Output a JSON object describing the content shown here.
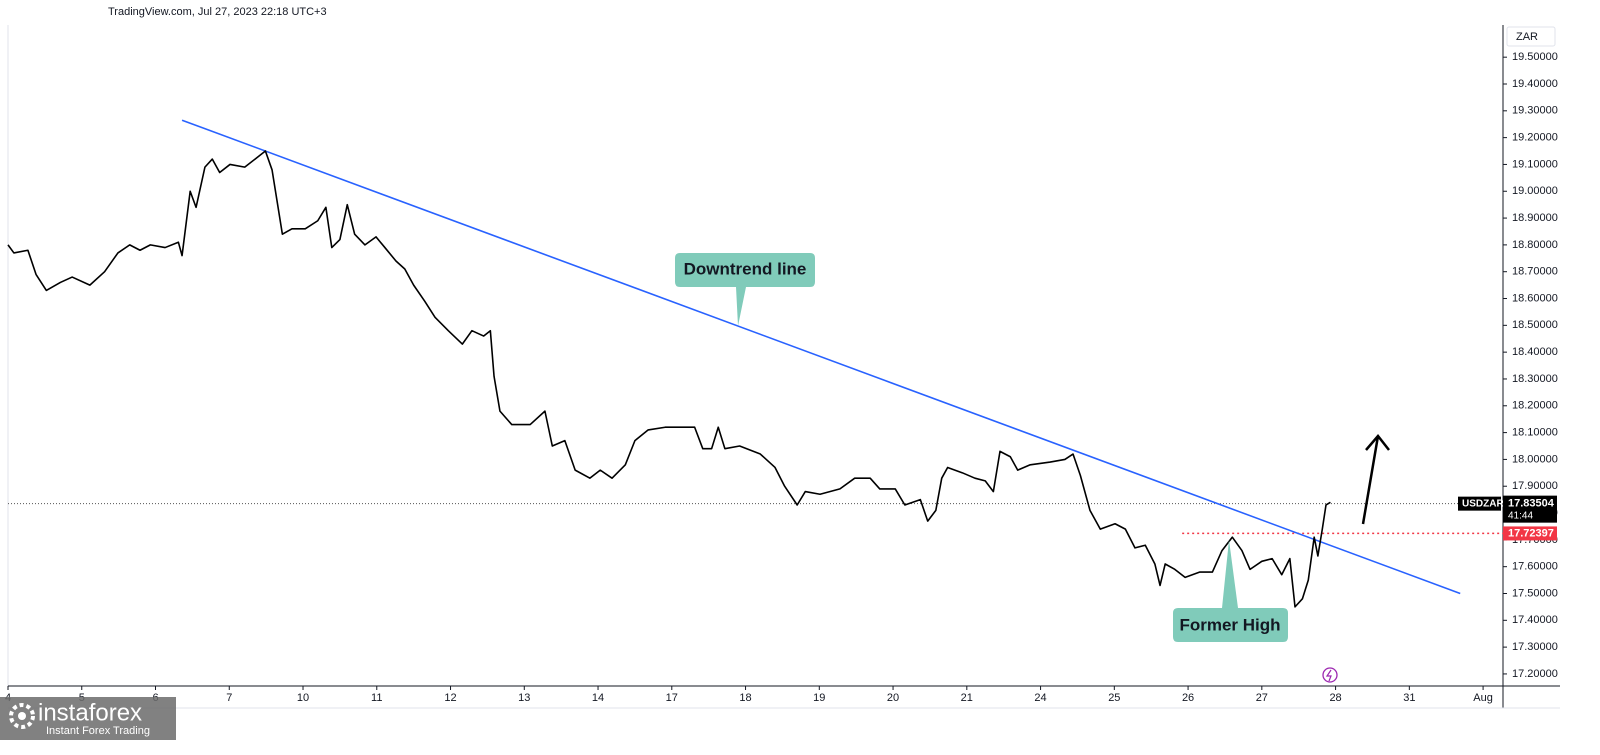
{
  "chart_data": {
    "type": "line",
    "title": "TradingView.com, Jul 27, 2023 22:18 UTC+3",
    "y_unit": "ZAR",
    "xlim": [
      0,
      20.27
    ],
    "ylim": [
      17.155,
      19.62
    ],
    "xticks": [
      {
        "value": 0,
        "label": "4"
      },
      {
        "value": 1,
        "label": "5"
      },
      {
        "value": 2,
        "label": "6"
      },
      {
        "value": 3,
        "label": "7"
      },
      {
        "value": 4,
        "label": "10"
      },
      {
        "value": 5,
        "label": "11"
      },
      {
        "value": 6,
        "label": "12"
      },
      {
        "value": 7,
        "label": "13"
      },
      {
        "value": 8,
        "label": "14"
      },
      {
        "value": 9,
        "label": "17"
      },
      {
        "value": 10,
        "label": "18"
      },
      {
        "value": 11,
        "label": "19"
      },
      {
        "value": 12,
        "label": "20"
      },
      {
        "value": 13,
        "label": "21"
      },
      {
        "value": 14,
        "label": "24"
      },
      {
        "value": 15,
        "label": "25"
      },
      {
        "value": 16,
        "label": "26"
      },
      {
        "value": 17,
        "label": "27"
      },
      {
        "value": 18,
        "label": "28"
      },
      {
        "value": 19,
        "label": "31"
      },
      {
        "value": 20,
        "label": "Aug"
      }
    ],
    "yticks": [
      {
        "value": 17.2,
        "label": "17.20000"
      },
      {
        "value": 17.3,
        "label": "17.30000"
      },
      {
        "value": 17.4,
        "label": "17.40000"
      },
      {
        "value": 17.5,
        "label": "17.50000"
      },
      {
        "value": 17.6,
        "label": "17.60000"
      },
      {
        "value": 17.7,
        "label": "17.70000"
      },
      {
        "value": 17.8,
        "label": "17.80000"
      },
      {
        "value": 17.9,
        "label": "17.90000"
      },
      {
        "value": 18.0,
        "label": "18.00000"
      },
      {
        "value": 18.1,
        "label": "18.10000"
      },
      {
        "value": 18.2,
        "label": "18.20000"
      },
      {
        "value": 18.3,
        "label": "18.30000"
      },
      {
        "value": 18.4,
        "label": "18.40000"
      },
      {
        "value": 18.5,
        "label": "18.50000"
      },
      {
        "value": 18.6,
        "label": "18.60000"
      },
      {
        "value": 18.7,
        "label": "18.70000"
      },
      {
        "value": 18.8,
        "label": "18.80000"
      },
      {
        "value": 18.9,
        "label": "18.90000"
      },
      {
        "value": 19.0,
        "label": "19.00000"
      },
      {
        "value": 19.1,
        "label": "19.10000"
      },
      {
        "value": 19.2,
        "label": "19.20000"
      },
      {
        "value": 19.3,
        "label": "19.30000"
      },
      {
        "value": 19.4,
        "label": "19.40000"
      },
      {
        "value": 19.5,
        "label": "19.50000"
      }
    ],
    "series": [
      {
        "name": "USDZAR",
        "color": "#000000",
        "x": [
          0,
          0.08,
          0.27,
          0.38,
          0.52,
          0.71,
          0.87,
          1.11,
          1.31,
          1.49,
          1.65,
          1.79,
          1.93,
          2.13,
          2.31,
          2.36,
          2.47,
          2.55,
          2.67,
          2.77,
          2.87,
          3.01,
          3.21,
          3.35,
          3.49,
          3.58,
          3.72,
          3.85,
          4.03,
          4.2,
          4.31,
          4.39,
          4.5,
          4.6,
          4.7,
          4.84,
          4.99,
          5.11,
          5.26,
          5.38,
          5.5,
          5.65,
          5.79,
          5.97,
          6.16,
          6.29,
          6.45,
          6.54,
          6.59,
          6.67,
          6.83,
          7.08,
          7.28,
          7.38,
          7.55,
          7.69,
          7.89,
          8.03,
          8.19,
          8.37,
          8.5,
          8.68,
          8.91,
          9.18,
          9.31,
          9.42,
          9.54,
          9.63,
          9.72,
          9.92,
          10.2,
          10.4,
          10.53,
          10.7,
          10.81,
          11.01,
          11.28,
          11.48,
          11.69,
          11.82,
          12.03,
          12.16,
          12.37,
          12.47,
          12.58,
          12.66,
          12.74,
          12.94,
          13.11,
          13.25,
          13.36,
          13.45,
          13.59,
          13.69,
          13.86,
          14.13,
          14.33,
          14.44,
          14.54,
          14.67,
          14.81,
          15.01,
          15.15,
          15.28,
          15.42,
          15.55,
          15.62,
          15.69,
          15.82,
          15.96,
          16.16,
          16.33,
          16.46,
          16.6,
          16.73,
          16.84,
          17.0,
          17.14,
          17.27,
          17.38,
          17.45,
          17.55,
          17.63,
          17.71,
          17.76,
          17.82,
          17.87,
          17.93
        ],
        "values": [
          18.8,
          18.77,
          18.78,
          18.69,
          18.63,
          18.66,
          18.68,
          18.65,
          18.7,
          18.77,
          18.8,
          18.78,
          18.8,
          18.79,
          18.81,
          18.76,
          19.0,
          18.94,
          19.09,
          19.12,
          19.07,
          19.1,
          19.09,
          19.12,
          19.15,
          19.08,
          18.84,
          18.86,
          18.86,
          18.89,
          18.94,
          18.79,
          18.82,
          18.95,
          18.84,
          18.8,
          18.83,
          18.79,
          18.74,
          18.71,
          18.65,
          18.59,
          18.53,
          18.48,
          18.43,
          18.48,
          18.46,
          18.48,
          18.31,
          18.18,
          18.13,
          18.13,
          18.18,
          18.05,
          18.07,
          17.96,
          17.93,
          17.96,
          17.93,
          17.98,
          18.07,
          18.11,
          18.12,
          18.12,
          18.12,
          18.04,
          18.04,
          18.12,
          18.04,
          18.05,
          18.02,
          17.97,
          17.9,
          17.83,
          17.88,
          17.87,
          17.89,
          17.93,
          17.93,
          17.89,
          17.89,
          17.83,
          17.85,
          17.77,
          17.81,
          17.93,
          17.97,
          17.95,
          17.93,
          17.92,
          17.88,
          18.03,
          18.01,
          17.96,
          17.98,
          17.99,
          18.0,
          18.02,
          17.94,
          17.81,
          17.74,
          17.76,
          17.74,
          17.67,
          17.68,
          17.61,
          17.53,
          17.61,
          17.59,
          17.56,
          17.58,
          17.58,
          17.66,
          17.71,
          17.66,
          17.59,
          17.62,
          17.63,
          17.57,
          17.63,
          17.45,
          17.48,
          17.55,
          17.71,
          17.64,
          17.74,
          17.83,
          17.84
        ]
      }
    ],
    "trendlines": [
      {
        "x": [
          2.36,
          19.69
        ],
        "y": [
          19.265,
          17.5
        ],
        "color": "#2962ff"
      }
    ],
    "price_labels": [
      {
        "name": "USDZAR",
        "value": 17.83504,
        "countdown": "41:44",
        "color": "#000000"
      }
    ],
    "levels": [
      {
        "value": 17.72397,
        "x_start": 15.92,
        "color": "#f23645"
      }
    ],
    "annotations": [
      "Downtrend line",
      "Former High"
    ],
    "watermark": {
      "brand": "instaforex",
      "tagline": "Instant Forex Trading"
    }
  }
}
